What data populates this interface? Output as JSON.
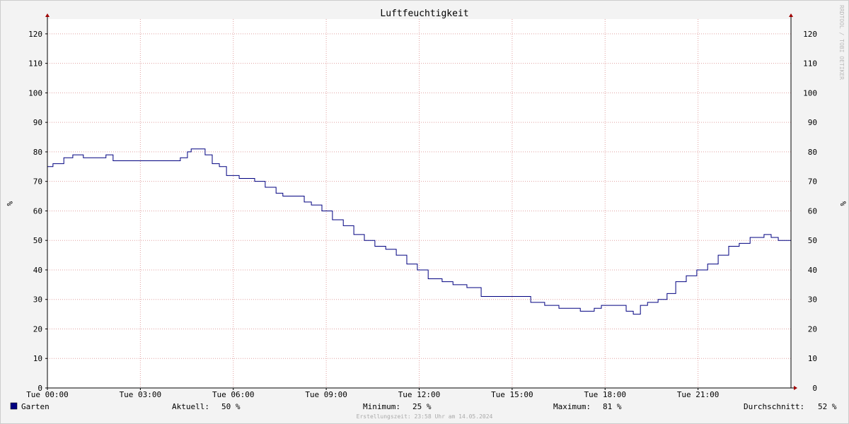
{
  "chart_data": {
    "type": "line",
    "title": "Luftfeuchtigkeit",
    "y_label": "%",
    "watermark": "RRDTOOL / TOBI OETIKER",
    "footer": "Erstellungszeit: 23:58 Uhr am 14.05.2024",
    "x": [
      0,
      0.18,
      0.53,
      0.82,
      1.16,
      1.78,
      1.89,
      2.12,
      3.95,
      4.29,
      4.52,
      4.64,
      4.93,
      5.09,
      5.32,
      5.55,
      5.78,
      6.19,
      6.69,
      7.03,
      7.38,
      7.6,
      8.06,
      8.29,
      8.52,
      8.86,
      9.2,
      9.55,
      9.89,
      10.23,
      10.57,
      10.92,
      11.26,
      11.6,
      11.94,
      12.29,
      12.74,
      13.09,
      13.54,
      14.0,
      14.46,
      14.91,
      15.37,
      15.6,
      16.05,
      16.51,
      16.74,
      17.2,
      17.65,
      17.88,
      18.34,
      18.68,
      18.91,
      19.14,
      19.37,
      19.71,
      20.0,
      20.28,
      20.62,
      20.96,
      21.31,
      21.65,
      21.99,
      22.33,
      22.68,
      23.13,
      23.36,
      23.59,
      24
    ],
    "series": [
      {
        "name": "Garten",
        "color": "#000080",
        "values": [
          75,
          76,
          78,
          79,
          78,
          78,
          79,
          77,
          77,
          78,
          80,
          81,
          81,
          79,
          76,
          75,
          72,
          71,
          70,
          68,
          66,
          65,
          65,
          63,
          62,
          60,
          57,
          55,
          52,
          50,
          48,
          47,
          45,
          42,
          40,
          37,
          36,
          35,
          34,
          31,
          31,
          31,
          31,
          29,
          28,
          27,
          27,
          26,
          27,
          28,
          28,
          26,
          25,
          28,
          29,
          30,
          32,
          36,
          38,
          40,
          42,
          45,
          48,
          49,
          51,
          52,
          51,
          50,
          50
        ]
      }
    ],
    "xlim": [
      0,
      24
    ],
    "xticks": [
      {
        "value": 0,
        "label": "Tue 00:00"
      },
      {
        "value": 3,
        "label": "Tue 03:00"
      },
      {
        "value": 6,
        "label": "Tue 06:00"
      },
      {
        "value": 9,
        "label": "Tue 09:00"
      },
      {
        "value": 12,
        "label": "Tue 12:00"
      },
      {
        "value": 15,
        "label": "Tue 15:00"
      },
      {
        "value": 18,
        "label": "Tue 18:00"
      },
      {
        "value": 21,
        "label": "Tue 21:00"
      }
    ],
    "ylim": [
      0,
      125
    ],
    "yticks": [
      0,
      10,
      20,
      30,
      40,
      50,
      60,
      70,
      80,
      90,
      100,
      110,
      120
    ],
    "grid": true,
    "stats": [
      {
        "label": "Aktuell:",
        "value": "50 %"
      },
      {
        "label": "Minimum:",
        "value": "25 %"
      },
      {
        "label": "Maximum:",
        "value": "81 %"
      },
      {
        "label": "Durchschnitt:",
        "value": "52 %"
      }
    ]
  }
}
